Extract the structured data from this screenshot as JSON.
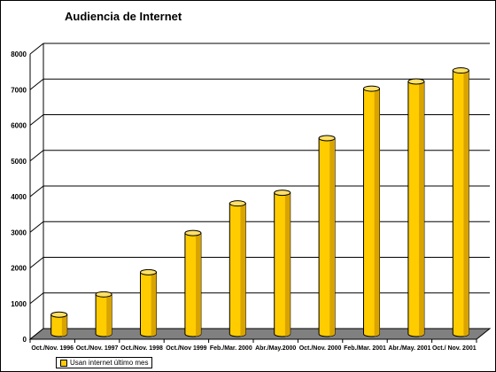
{
  "chart_data": {
    "type": "bar",
    "style": "3d-cylinder",
    "title": "Audiencia de Internet",
    "xlabel": "",
    "ylabel": "",
    "ylim": [
      0,
      8000
    ],
    "yticks": [
      "0",
      "1000",
      "2000",
      "3000",
      "4000",
      "5000",
      "6000",
      "7000",
      "8000"
    ],
    "grid": true,
    "legend_position": "bottom-left",
    "categories": [
      "Oct./Nov. 1996",
      "Oct./Nov. 1997",
      "Oct./Nov. 1998",
      "Oct./Nov 1999",
      "Feb./Mar. 2000",
      "Abr./May.2000",
      "Oct./Nov. 2000",
      "Feb./Mar. 2001",
      "Abr./May. 2001",
      "Oct./ Nov. 2001"
    ],
    "series": [
      {
        "name": "Usan internet último mes",
        "color": "#ffcc00",
        "values": [
          540,
          1110,
          1730,
          2830,
          3660,
          3960,
          5490,
          6880,
          7080,
          7390
        ]
      }
    ]
  }
}
